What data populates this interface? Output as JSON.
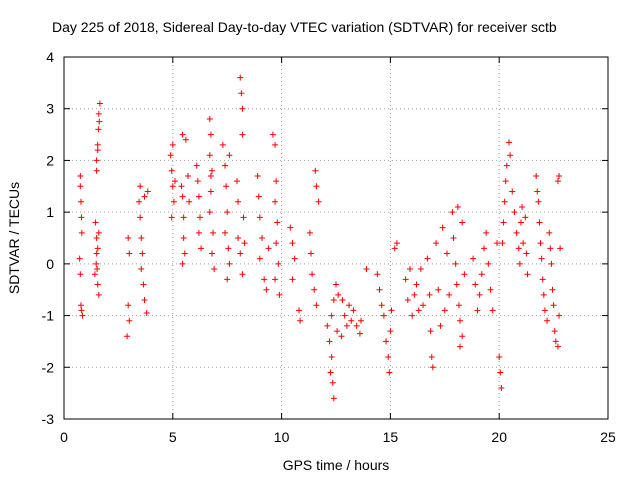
{
  "chart_data": {
    "type": "scatter",
    "title": "Day 225 of 2018, Sidereal Day-to-day VTEC variation (SDTVAR) for receiver sctb",
    "xlabel": "GPS time / hours",
    "ylabel": "SDTVAR / TECUs",
    "xlim": [
      0,
      25
    ],
    "ylim": [
      -3,
      4
    ],
    "xticks": [
      "0",
      "5",
      "10",
      "15",
      "20",
      "25"
    ],
    "yticks": [
      "-3",
      "-2",
      "-1",
      "0",
      "1",
      "2",
      "3",
      "4"
    ],
    "grid": true,
    "marker": "plus",
    "color": "#ff0000",
    "series": [
      {
        "name": "SDTVAR",
        "points": [
          [
            0.75,
            1.7
          ],
          [
            0.75,
            1.5
          ],
          [
            0.78,
            1.2
          ],
          [
            0.8,
            0.9
          ],
          [
            0.82,
            0.6
          ],
          [
            0.72,
            0.1
          ],
          [
            0.75,
            -0.2
          ],
          [
            0.8,
            -0.9
          ],
          [
            0.85,
            -1.0
          ],
          [
            0.78,
            -0.8
          ],
          [
            1.45,
            0.8
          ],
          [
            1.5,
            0.5
          ],
          [
            1.5,
            0.2
          ],
          [
            1.52,
            -0.1
          ],
          [
            1.55,
            -0.4
          ],
          [
            1.6,
            -0.6
          ],
          [
            1.48,
            0.0
          ],
          [
            1.55,
            0.3
          ],
          [
            1.6,
            0.6
          ],
          [
            1.42,
            -0.2
          ],
          [
            1.5,
            2.0
          ],
          [
            1.55,
            2.3
          ],
          [
            1.5,
            1.8
          ],
          [
            1.58,
            2.6
          ],
          [
            1.6,
            2.9
          ],
          [
            1.65,
            3.1
          ],
          [
            1.62,
            2.75
          ],
          [
            1.55,
            2.2
          ],
          [
            2.95,
            0.5
          ],
          [
            3.0,
            0.2
          ],
          [
            2.95,
            -0.8
          ],
          [
            3.0,
            -1.1
          ],
          [
            2.9,
            -1.4
          ],
          [
            3.5,
            1.5
          ],
          [
            3.45,
            1.2
          ],
          [
            3.5,
            0.9
          ],
          [
            3.55,
            0.5
          ],
          [
            3.6,
            0.2
          ],
          [
            3.55,
            -0.1
          ],
          [
            3.65,
            -0.4
          ],
          [
            3.7,
            -0.7
          ],
          [
            3.8,
            -0.95
          ],
          [
            3.85,
            1.4
          ],
          [
            3.7,
            1.3
          ],
          [
            4.9,
            2.1
          ],
          [
            4.95,
            1.8
          ],
          [
            5.0,
            1.5
          ],
          [
            5.05,
            1.2
          ],
          [
            4.95,
            0.9
          ],
          [
            5.1,
            1.6
          ],
          [
            5.0,
            2.3
          ],
          [
            5.4,
            1.5
          ],
          [
            5.45,
            1.3
          ],
          [
            5.5,
            0.9
          ],
          [
            5.5,
            0.5
          ],
          [
            5.55,
            0.2
          ],
          [
            5.45,
            2.5
          ],
          [
            5.6,
            2.4
          ],
          [
            5.7,
            1.7
          ],
          [
            5.75,
            1.2
          ],
          [
            5.45,
            0.0
          ],
          [
            6.1,
            1.9
          ],
          [
            6.15,
            1.6
          ],
          [
            6.2,
            1.3
          ],
          [
            6.25,
            0.9
          ],
          [
            6.2,
            0.6
          ],
          [
            6.3,
            0.3
          ],
          [
            6.7,
            2.8
          ],
          [
            6.75,
            2.5
          ],
          [
            6.7,
            2.1
          ],
          [
            6.8,
            1.8
          ],
          [
            6.75,
            1.4
          ],
          [
            6.7,
            1.0
          ],
          [
            6.85,
            0.6
          ],
          [
            6.8,
            0.2
          ],
          [
            6.9,
            -0.1
          ],
          [
            6.75,
            1.7
          ],
          [
            7.4,
            1.9
          ],
          [
            7.45,
            1.5
          ],
          [
            7.5,
            1.0
          ],
          [
            7.4,
            0.6
          ],
          [
            7.55,
            0.3
          ],
          [
            7.6,
            0.0
          ],
          [
            7.5,
            -0.3
          ],
          [
            7.3,
            2.3
          ],
          [
            7.6,
            2.1
          ],
          [
            8.1,
            3.6
          ],
          [
            8.15,
            3.3
          ],
          [
            8.2,
            3.0
          ],
          [
            8.0,
            0.5
          ],
          [
            8.1,
            0.2
          ],
          [
            8.2,
            -0.2
          ],
          [
            8.0,
            1.2
          ],
          [
            8.25,
            0.9
          ],
          [
            8.2,
            2.5
          ],
          [
            7.95,
            1.6
          ],
          [
            8.3,
            0.4
          ],
          [
            8.9,
            1.7
          ],
          [
            8.95,
            1.3
          ],
          [
            9.0,
            0.9
          ],
          [
            9.1,
            0.5
          ],
          [
            9.0,
            0.1
          ],
          [
            9.2,
            -0.3
          ],
          [
            9.3,
            -0.5
          ],
          [
            9.4,
            0.3
          ],
          [
            9.6,
            2.5
          ],
          [
            9.7,
            2.3
          ],
          [
            9.75,
            1.6
          ],
          [
            9.7,
            1.2
          ],
          [
            9.8,
            0.8
          ],
          [
            9.75,
            0.4
          ],
          [
            9.85,
            0.0
          ],
          [
            9.7,
            -0.3
          ],
          [
            9.9,
            -0.6
          ],
          [
            10.4,
            0.7
          ],
          [
            10.5,
            0.4
          ],
          [
            10.6,
            0.1
          ],
          [
            10.5,
            -0.3
          ],
          [
            10.8,
            -0.9
          ],
          [
            10.85,
            -1.1
          ],
          [
            11.3,
            0.6
          ],
          [
            11.35,
            0.2
          ],
          [
            11.4,
            -0.2
          ],
          [
            11.5,
            -0.5
          ],
          [
            11.6,
            -0.8
          ],
          [
            11.55,
            1.8
          ],
          [
            11.6,
            1.5
          ],
          [
            11.7,
            1.2
          ],
          [
            12.1,
            -1.2
          ],
          [
            12.2,
            -1.5
          ],
          [
            12.3,
            -1.8
          ],
          [
            12.25,
            -2.1
          ],
          [
            12.35,
            -2.3
          ],
          [
            12.4,
            -2.6
          ],
          [
            12.3,
            -1.0
          ],
          [
            12.4,
            -0.7
          ],
          [
            12.5,
            -0.4
          ],
          [
            12.6,
            -0.6
          ],
          [
            12.55,
            -1.3
          ],
          [
            12.8,
            -0.7
          ],
          [
            12.9,
            -1.0
          ],
          [
            12.75,
            -1.4
          ],
          [
            13.0,
            -1.2
          ],
          [
            13.1,
            -0.8
          ],
          [
            13.2,
            -1.1
          ],
          [
            13.3,
            -0.9
          ],
          [
            13.45,
            -1.2
          ],
          [
            13.6,
            -1.35
          ],
          [
            13.65,
            -1.1
          ],
          [
            13.9,
            -0.1
          ],
          [
            14.4,
            -0.2
          ],
          [
            14.5,
            -0.5
          ],
          [
            14.6,
            -0.8
          ],
          [
            14.7,
            -1.0
          ],
          [
            14.8,
            -1.5
          ],
          [
            14.9,
            -1.8
          ],
          [
            14.95,
            -2.1
          ],
          [
            15.0,
            -1.3
          ],
          [
            15.05,
            -0.9
          ],
          [
            15.2,
            0.3
          ],
          [
            15.3,
            0.4
          ],
          [
            15.7,
            -0.3
          ],
          [
            15.8,
            -0.7
          ],
          [
            15.9,
            -0.1
          ],
          [
            16.0,
            -1.0
          ],
          [
            16.1,
            -0.6
          ],
          [
            16.2,
            -0.4
          ],
          [
            16.3,
            -0.9
          ],
          [
            16.4,
            -0.1
          ],
          [
            16.5,
            -0.8
          ],
          [
            16.7,
            0.1
          ],
          [
            16.8,
            -0.6
          ],
          [
            16.85,
            -1.3
          ],
          [
            16.9,
            -1.8
          ],
          [
            16.95,
            -2.0
          ],
          [
            17.1,
            0.4
          ],
          [
            17.2,
            -0.5
          ],
          [
            17.3,
            -1.2
          ],
          [
            17.4,
            0.7
          ],
          [
            17.5,
            -0.9
          ],
          [
            17.6,
            0.2
          ],
          [
            17.7,
            -0.6
          ],
          [
            17.85,
            1.0
          ],
          [
            17.9,
            0.5
          ],
          [
            18.0,
            0.0
          ],
          [
            18.05,
            -0.4
          ],
          [
            18.15,
            -0.8
          ],
          [
            18.2,
            -1.1
          ],
          [
            18.3,
            -1.4
          ],
          [
            18.2,
            -1.6
          ],
          [
            18.1,
            1.1
          ],
          [
            18.3,
            0.8
          ],
          [
            18.4,
            -0.2
          ],
          [
            18.8,
            0.1
          ],
          [
            18.9,
            -0.4
          ],
          [
            19.0,
            -0.9
          ],
          [
            19.1,
            -0.6
          ],
          [
            19.2,
            -0.2
          ],
          [
            19.3,
            0.3
          ],
          [
            19.4,
            0.6
          ],
          [
            19.5,
            0.0
          ],
          [
            19.6,
            -0.5
          ],
          [
            19.7,
            -0.9
          ],
          [
            19.9,
            0.4
          ],
          [
            20.0,
            -1.8
          ],
          [
            20.05,
            -2.1
          ],
          [
            20.1,
            -2.4
          ],
          [
            20.15,
            0.4
          ],
          [
            20.2,
            0.8
          ],
          [
            20.25,
            1.2
          ],
          [
            20.3,
            1.6
          ],
          [
            20.35,
            1.9
          ],
          [
            20.45,
            2.35
          ],
          [
            20.5,
            2.1
          ],
          [
            20.6,
            1.4
          ],
          [
            20.7,
            1.0
          ],
          [
            20.8,
            0.6
          ],
          [
            20.9,
            0.3
          ],
          [
            21.0,
            0.8
          ],
          [
            21.05,
            1.1
          ],
          [
            21.1,
            0.4
          ],
          [
            21.2,
            0.9
          ],
          [
            21.25,
            0.2
          ],
          [
            21.3,
            -0.2
          ],
          [
            20.95,
            0.0
          ],
          [
            21.7,
            1.7
          ],
          [
            21.75,
            1.4
          ],
          [
            21.8,
            1.2
          ],
          [
            21.85,
            0.8
          ],
          [
            21.9,
            0.4
          ],
          [
            21.95,
            0.1
          ],
          [
            22.0,
            -0.3
          ],
          [
            22.05,
            -0.6
          ],
          [
            22.1,
            -0.9
          ],
          [
            22.2,
            -1.1
          ],
          [
            22.3,
            0.6
          ],
          [
            22.35,
            0.3
          ],
          [
            22.4,
            0.0
          ],
          [
            22.45,
            -0.5
          ],
          [
            22.5,
            -0.8
          ],
          [
            22.55,
            -1.3
          ],
          [
            22.6,
            -1.5
          ],
          [
            22.7,
            -1.6
          ],
          [
            22.75,
            -1.0
          ],
          [
            22.8,
            0.3
          ],
          [
            22.7,
            1.6
          ],
          [
            22.75,
            1.7
          ]
        ]
      }
    ]
  }
}
